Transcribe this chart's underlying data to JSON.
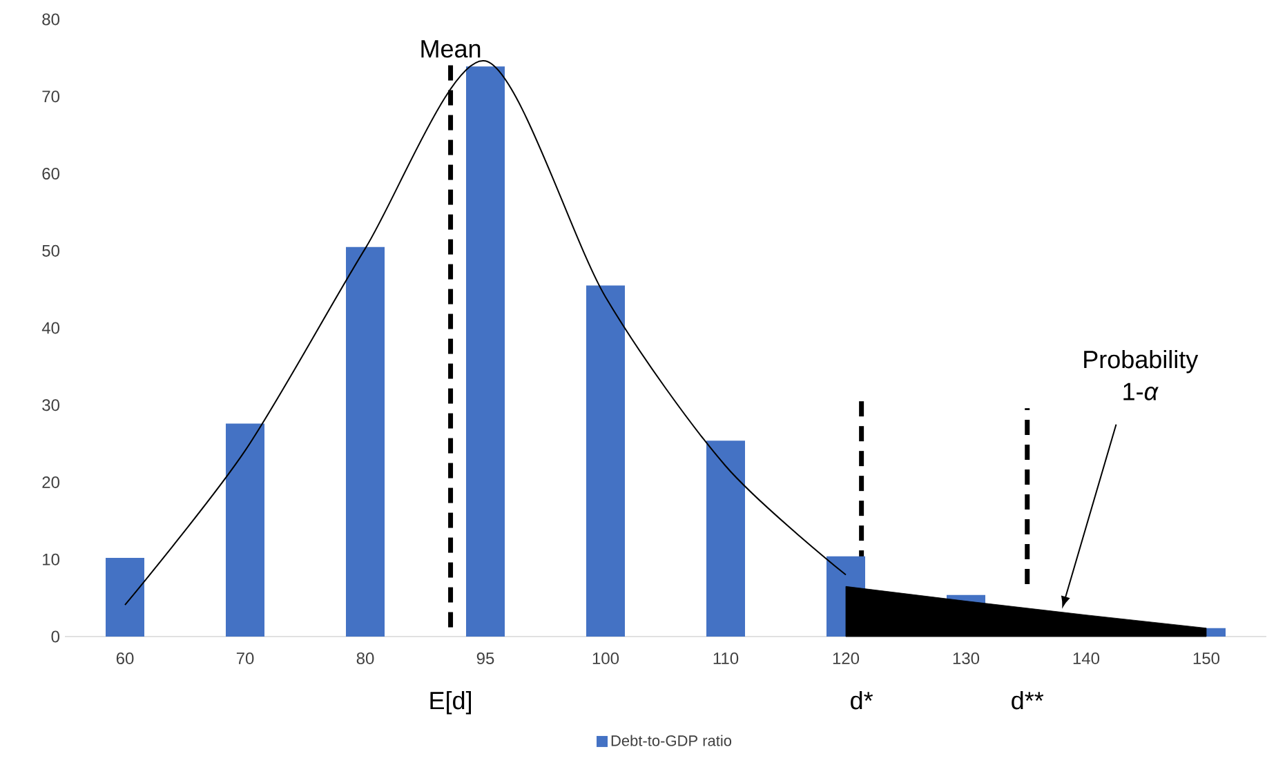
{
  "chart_data": {
    "type": "bar",
    "categories": [
      "60",
      "70",
      "80",
      "95",
      "100",
      "110",
      "120",
      "130",
      "140",
      "150"
    ],
    "series": [
      {
        "name": "Debt-to-GDP ratio",
        "color": "#4472c4",
        "values": [
          10.2,
          27.6,
          50.5,
          73.9,
          45.5,
          25.4,
          10.4,
          5.4,
          null,
          1.1
        ]
      },
      {
        "type": "line",
        "color": "#000000",
        "values": [
          4.1,
          24.1,
          50.3,
          74.6,
          44.0,
          22.1,
          8.0,
          null,
          null,
          null
        ]
      },
      {
        "type": "area",
        "color": "#000000",
        "values": [
          null,
          null,
          null,
          null,
          null,
          null,
          6.5,
          4.6,
          2.8,
          1.1
        ]
      }
    ],
    "annotations": [
      "Mean",
      "E[d]",
      "d*",
      "d**",
      "Probability",
      "1-*α*"
    ],
    "ylim": [
      0,
      80
    ],
    "yticks": [
      0,
      10,
      20,
      30,
      40,
      50,
      60,
      70,
      80
    ],
    "legend": "bottom"
  }
}
